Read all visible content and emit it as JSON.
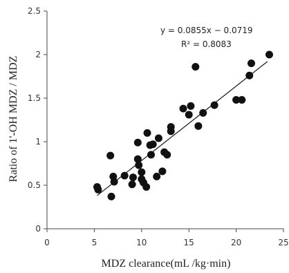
{
  "chart_data": {
    "type": "scatter",
    "title": "",
    "xlabel": "MDZ clearance(mL /kg·min)",
    "ylabel": "Ratio of 1'-OH MDZ / MDZ",
    "xlim": [
      0,
      25
    ],
    "ylim": [
      0,
      2.5
    ],
    "xticks": [
      "0",
      "5",
      "10",
      "15",
      "20",
      "25"
    ],
    "yticks": [
      "0",
      "0.5",
      "1",
      "1.5",
      "2",
      "2.5"
    ],
    "grid": false,
    "points": [
      {
        "x": 5.3,
        "y": 0.48
      },
      {
        "x": 5.4,
        "y": 0.45
      },
      {
        "x": 6.7,
        "y": 0.84
      },
      {
        "x": 6.8,
        "y": 0.37
      },
      {
        "x": 7.0,
        "y": 0.6
      },
      {
        "x": 7.1,
        "y": 0.54
      },
      {
        "x": 8.2,
        "y": 0.61
      },
      {
        "x": 9.0,
        "y": 0.51
      },
      {
        "x": 9.1,
        "y": 0.59
      },
      {
        "x": 9.6,
        "y": 0.99
      },
      {
        "x": 9.6,
        "y": 0.8
      },
      {
        "x": 9.7,
        "y": 0.73
      },
      {
        "x": 10.0,
        "y": 0.57
      },
      {
        "x": 10.0,
        "y": 0.65
      },
      {
        "x": 10.2,
        "y": 0.53
      },
      {
        "x": 10.5,
        "y": 0.48
      },
      {
        "x": 10.6,
        "y": 1.1
      },
      {
        "x": 10.9,
        "y": 0.96
      },
      {
        "x": 11.0,
        "y": 0.85
      },
      {
        "x": 11.2,
        "y": 0.97
      },
      {
        "x": 11.6,
        "y": 0.6
      },
      {
        "x": 11.8,
        "y": 1.04
      },
      {
        "x": 12.2,
        "y": 0.66
      },
      {
        "x": 12.4,
        "y": 0.88
      },
      {
        "x": 12.7,
        "y": 0.85
      },
      {
        "x": 13.1,
        "y": 1.12
      },
      {
        "x": 13.1,
        "y": 1.17
      },
      {
        "x": 14.4,
        "y": 1.38
      },
      {
        "x": 15.0,
        "y": 1.31
      },
      {
        "x": 15.2,
        "y": 1.41
      },
      {
        "x": 15.7,
        "y": 1.86
      },
      {
        "x": 16.0,
        "y": 1.18
      },
      {
        "x": 16.5,
        "y": 1.33
      },
      {
        "x": 17.7,
        "y": 1.42
      },
      {
        "x": 20.0,
        "y": 1.48
      },
      {
        "x": 20.6,
        "y": 1.48
      },
      {
        "x": 21.4,
        "y": 1.76
      },
      {
        "x": 21.6,
        "y": 1.9
      },
      {
        "x": 23.5,
        "y": 2.0
      }
    ],
    "trendline": {
      "slope": 0.0855,
      "intercept": -0.0719,
      "x_range": [
        5.3,
        23.3
      ]
    },
    "annotations": {
      "equation": "y = 0.0855x − 0.0719",
      "r_squared": "R² = 0.8083"
    },
    "colors": {
      "points": "#111111",
      "line": "#111111",
      "axis": "#444444"
    }
  }
}
